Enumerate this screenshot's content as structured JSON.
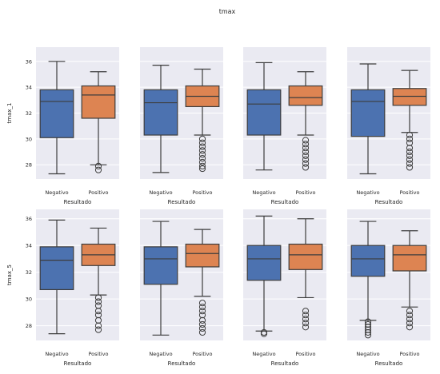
{
  "suptitle": "tmax",
  "colors": {
    "background": "#eaeaf2",
    "grid": "#ffffff",
    "negativo": "#4c72b0",
    "positivo": "#dd8452",
    "line": "#3d3d3d"
  },
  "chart_data": {
    "type": "box",
    "rows": [
      {
        "ylabel": "tmax_1",
        "ylim": [
          26.9,
          37.1
        ],
        "yticks": [
          28,
          30,
          32,
          34,
          36
        ],
        "panels": [
          {
            "xlabel": "Resultado",
            "categories": [
              "Negativo",
              "Positivo"
            ],
            "boxes": [
              {
                "category": "Negativo",
                "whislo": 27.3,
                "q1": 30.1,
                "median": 32.9,
                "q3": 33.8,
                "whishi": 36.0,
                "fliers": []
              },
              {
                "category": "Positivo",
                "whislo": 28.0,
                "q1": 31.6,
                "median": 33.4,
                "q3": 34.1,
                "whishi": 35.2,
                "fliers": [
                  27.6,
                  27.9
                ]
              }
            ]
          },
          {
            "xlabel": "Resultado",
            "categories": [
              "Negativo",
              "Positivo"
            ],
            "boxes": [
              {
                "category": "Negativo",
                "whislo": 27.4,
                "q1": 30.3,
                "median": 32.8,
                "q3": 33.8,
                "whishi": 35.7,
                "fliers": []
              },
              {
                "category": "Positivo",
                "whislo": 30.3,
                "q1": 32.5,
                "median": 33.3,
                "q3": 34.1,
                "whishi": 35.4,
                "fliers": [
                  27.7,
                  27.9,
                  28.2,
                  28.5,
                  28.8,
                  29.1,
                  29.4,
                  29.7,
                  30.0
                ]
              }
            ]
          },
          {
            "xlabel": "Resultado",
            "categories": [
              "Negativo",
              "Positivo"
            ],
            "boxes": [
              {
                "category": "Negativo",
                "whislo": 27.6,
                "q1": 30.3,
                "median": 32.7,
                "q3": 33.8,
                "whishi": 35.9,
                "fliers": []
              },
              {
                "category": "Positivo",
                "whislo": 30.3,
                "q1": 32.6,
                "median": 33.2,
                "q3": 34.1,
                "whishi": 35.2,
                "fliers": [
                  27.8,
                  28.1,
                  28.4,
                  28.7,
                  29.0,
                  29.3,
                  29.6,
                  29.9
                ]
              }
            ]
          },
          {
            "xlabel": "Resultado",
            "categories": [
              "Negativo",
              "Positivo"
            ],
            "boxes": [
              {
                "category": "Negativo",
                "whislo": 27.3,
                "q1": 30.2,
                "median": 32.9,
                "q3": 33.8,
                "whishi": 35.8,
                "fliers": []
              },
              {
                "category": "Positivo",
                "whislo": 30.5,
                "q1": 32.6,
                "median": 33.3,
                "q3": 33.9,
                "whishi": 35.3,
                "fliers": [
                  27.8,
                  28.1,
                  28.4,
                  28.7,
                  29.0,
                  29.3,
                  29.7,
                  30.0,
                  30.3
                ]
              }
            ]
          }
        ]
      },
      {
        "ylabel": "tmax_5",
        "ylim": [
          26.9,
          36.7
        ],
        "yticks": [
          28,
          30,
          32,
          34,
          36
        ],
        "panels": [
          {
            "xlabel": "Resultado",
            "categories": [
              "Negativo",
              "Positivo"
            ],
            "boxes": [
              {
                "category": "Negativo",
                "whislo": 27.4,
                "q1": 30.7,
                "median": 32.9,
                "q3": 33.9,
                "whishi": 35.9,
                "fliers": []
              },
              {
                "category": "Positivo",
                "whislo": 30.3,
                "q1": 32.5,
                "median": 33.3,
                "q3": 34.1,
                "whishi": 35.3,
                "fliers": [
                  27.7,
                  28.0,
                  28.4,
                  28.8,
                  29.1,
                  29.5,
                  29.8,
                  30.1
                ]
              }
            ]
          },
          {
            "xlabel": "Resultado",
            "categories": [
              "Negativo",
              "Positivo"
            ],
            "boxes": [
              {
                "category": "Negativo",
                "whislo": 27.3,
                "q1": 31.1,
                "median": 33.0,
                "q3": 33.9,
                "whishi": 35.8,
                "fliers": []
              },
              {
                "category": "Positivo",
                "whislo": 30.2,
                "q1": 32.4,
                "median": 33.4,
                "q3": 34.1,
                "whishi": 35.2,
                "fliers": [
                  27.5,
                  27.8,
                  28.1,
                  28.4,
                  28.8,
                  29.1,
                  29.4,
                  29.7
                ]
              }
            ]
          },
          {
            "xlabel": "Resultado",
            "categories": [
              "Negativo",
              "Positivo"
            ],
            "boxes": [
              {
                "category": "Negativo",
                "whislo": 27.6,
                "q1": 31.4,
                "median": 33.0,
                "q3": 34.0,
                "whishi": 36.2,
                "fliers": [
                  27.4,
                  27.5
                ]
              },
              {
                "category": "Positivo",
                "whislo": 30.1,
                "q1": 32.2,
                "median": 33.3,
                "q3": 34.1,
                "whishi": 36.0,
                "fliers": [
                  27.9,
                  28.2,
                  28.5,
                  28.8,
                  29.1
                ]
              }
            ]
          },
          {
            "xlabel": "Resultado",
            "categories": [
              "Negativo",
              "Positivo"
            ],
            "boxes": [
              {
                "category": "Negativo",
                "whislo": 28.4,
                "q1": 31.7,
                "median": 33.0,
                "q3": 34.0,
                "whishi": 35.8,
                "fliers": [
                  27.3,
                  27.5,
                  27.7,
                  27.9,
                  28.1,
                  28.3
                ]
              },
              {
                "category": "Positivo",
                "whislo": 29.4,
                "q1": 32.1,
                "median": 33.3,
                "q3": 34.0,
                "whishi": 35.1,
                "fliers": [
                  27.9,
                  28.2,
                  28.5,
                  28.8,
                  29.1
                ]
              }
            ]
          }
        ]
      }
    ]
  }
}
